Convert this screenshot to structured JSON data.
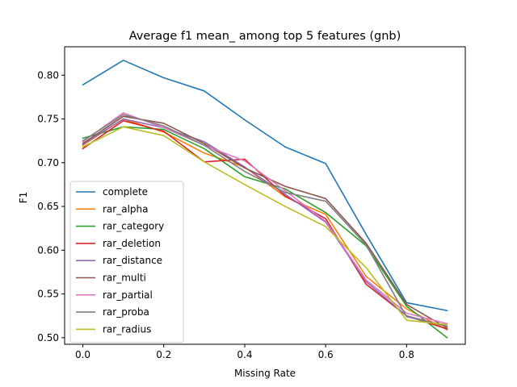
{
  "chart_data": {
    "type": "line",
    "title": "Average f1 mean_ among top 5 features (gnb)",
    "xlabel": "Missing Rate",
    "ylabel": "F1",
    "xlim": [
      -0.045,
      0.945
    ],
    "ylim": [
      0.4925,
      0.8325
    ],
    "xticks": [
      0.0,
      0.2,
      0.4,
      0.6,
      0.8
    ],
    "xtick_labels": [
      "0.0",
      "0.2",
      "0.4",
      "0.6",
      "0.8"
    ],
    "yticks": [
      0.5,
      0.55,
      0.6,
      0.65,
      0.7,
      0.75,
      0.8
    ],
    "ytick_labels": [
      "0.50",
      "0.55",
      "0.60",
      "0.65",
      "0.70",
      "0.75",
      "0.80"
    ],
    "grid": false,
    "legend_position": "lower-left",
    "x": [
      0.0,
      0.1,
      0.2,
      0.3,
      0.4,
      0.5,
      0.6,
      0.7,
      0.8,
      0.9
    ],
    "series": [
      {
        "name": "complete",
        "color": "#1f77b4",
        "values": [
          0.789,
          0.817,
          0.797,
          0.782,
          0.749,
          0.718,
          0.699,
          0.618,
          0.54,
          0.531
        ]
      },
      {
        "name": "rar_alpha",
        "color": "#ff7f0e",
        "values": [
          0.72,
          0.75,
          0.735,
          0.711,
          0.695,
          0.661,
          0.641,
          0.57,
          0.533,
          0.509
        ]
      },
      {
        "name": "rar_category",
        "color": "#2ca02c",
        "values": [
          0.728,
          0.741,
          0.738,
          0.716,
          0.684,
          0.67,
          0.643,
          0.605,
          0.536,
          0.5
        ]
      },
      {
        "name": "rar_deletion",
        "color": "#d62728",
        "values": [
          0.716,
          0.748,
          0.736,
          0.701,
          0.704,
          0.662,
          0.636,
          0.561,
          0.525,
          0.51
        ]
      },
      {
        "name": "rar_distance",
        "color": "#9467bd",
        "values": [
          0.721,
          0.75,
          0.74,
          0.724,
          0.695,
          0.664,
          0.632,
          0.564,
          0.525,
          0.513
        ]
      },
      {
        "name": "rar_multi",
        "color": "#8c564b",
        "values": [
          0.722,
          0.753,
          0.745,
          0.722,
          0.694,
          0.673,
          0.659,
          0.608,
          0.538,
          0.511
        ]
      },
      {
        "name": "rar_partial",
        "color": "#e377c2",
        "values": [
          0.724,
          0.757,
          0.74,
          0.72,
          0.702,
          0.668,
          0.633,
          0.566,
          0.528,
          0.516
        ]
      },
      {
        "name": "rar_proba",
        "color": "#7f7f7f",
        "values": [
          0.725,
          0.755,
          0.742,
          0.72,
          0.69,
          0.666,
          0.656,
          0.606,
          0.524,
          0.513
        ]
      },
      {
        "name": "rar_radius",
        "color": "#bcbd22",
        "values": [
          0.718,
          0.741,
          0.731,
          0.701,
          0.675,
          0.65,
          0.627,
          0.58,
          0.52,
          0.515
        ]
      }
    ]
  }
}
